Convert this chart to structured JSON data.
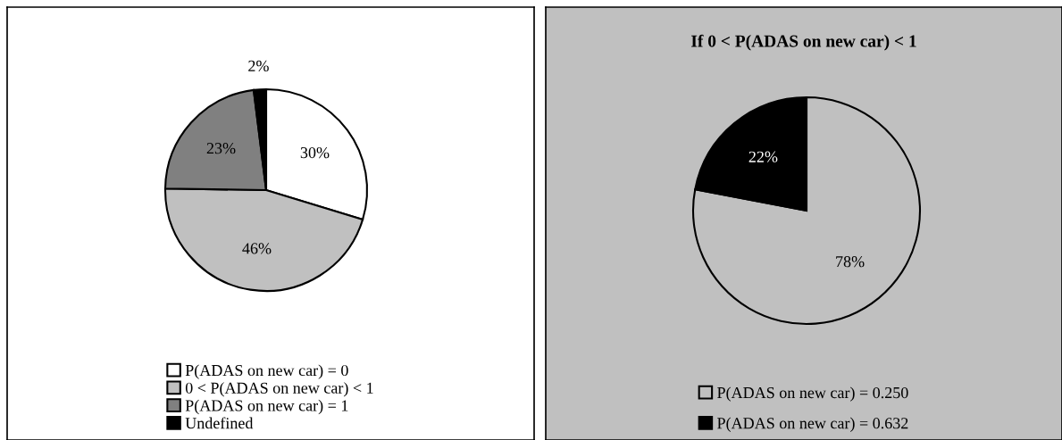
{
  "chart_data": [
    {
      "type": "pie",
      "categories": [
        "P(ADAS on new car) = 0",
        "0 < P(ADAS on new car) < 1",
        "P(ADAS on new car) = 1",
        "Undefined"
      ],
      "values": [
        30,
        46,
        23,
        2
      ],
      "colors": [
        "#ffffff",
        "#c0c0c0",
        "#808080",
        "#000000"
      ],
      "value_labels": [
        "30%",
        "46%",
        "23%",
        "2%"
      ],
      "legend": "bottom"
    },
    {
      "type": "pie",
      "title": "If 0 < P(ADAS on new car) < 1",
      "categories": [
        "P(ADAS on new car) = 0.250",
        "P(ADAS on new car) = 0.632"
      ],
      "values": [
        78,
        22
      ],
      "colors": [
        "#c0c0c0",
        "#000000"
      ],
      "value_labels": [
        "78%",
        "22%"
      ],
      "legend": "bottom"
    }
  ]
}
